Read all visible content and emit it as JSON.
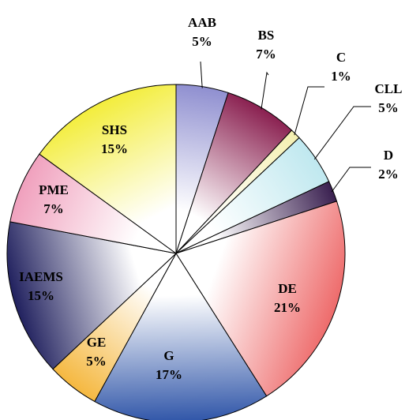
{
  "chart_data": {
    "type": "pie",
    "title": "",
    "start_angle": "12 o'clock",
    "direction": "clockwise",
    "slices": [
      {
        "category": "AAB",
        "value": 5,
        "label": "5%",
        "color": "#8f8fd0"
      },
      {
        "category": "BS",
        "value": 7,
        "label": "7%",
        "color": "#8a2050"
      },
      {
        "category": "C",
        "value": 1,
        "label": "1%",
        "color": "#f4efb0"
      },
      {
        "category": "CLL",
        "value": 5,
        "label": "5%",
        "color": "#bfe8ef"
      },
      {
        "category": "D",
        "value": 2,
        "label": "2%",
        "color": "#3a2050"
      },
      {
        "category": "DE",
        "value": 21,
        "label": "21%",
        "color": "#ee6b6b"
      },
      {
        "category": "G",
        "value": 17,
        "label": "17%",
        "color": "#2f55a8"
      },
      {
        "category": "GE",
        "value": 5,
        "label": "5%",
        "color": "#f5b840"
      },
      {
        "category": "IAEMS",
        "value": 15,
        "label": "15%",
        "color": "#20205e"
      },
      {
        "category": "PME",
        "value": 7,
        "label": "7%",
        "color": "#f0a0bd"
      },
      {
        "category": "SHS",
        "value": 15,
        "label": "15%",
        "color": "#f3ed3c"
      }
    ]
  }
}
